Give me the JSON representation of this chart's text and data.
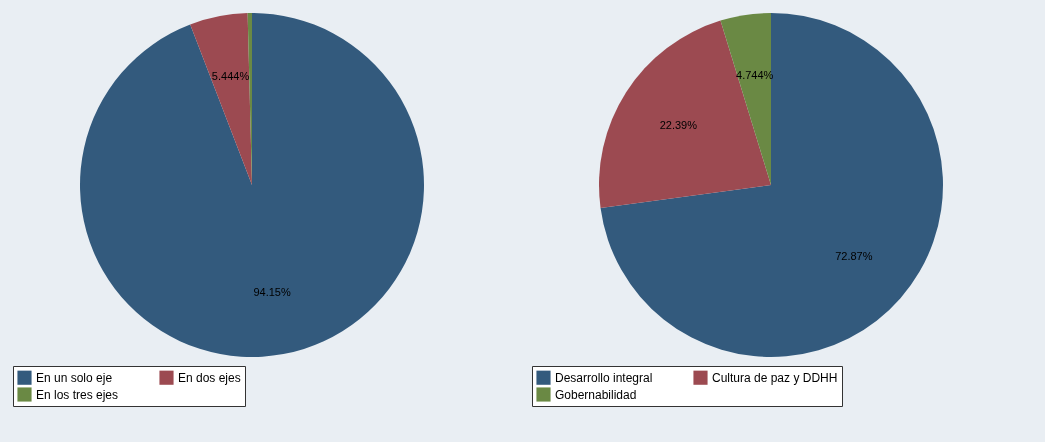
{
  "chart_data": [
    {
      "type": "pie",
      "categories": [
        "En un solo eje",
        "En dos ejes",
        "En los tres ejes"
      ],
      "values": [
        94.15,
        5.444,
        0.406
      ],
      "colors": [
        "#335a7d",
        "#9c4a51",
        "#6a8944"
      ],
      "value_labels": [
        "94.15%",
        "5.444%",
        null
      ],
      "legend": "bottom"
    },
    {
      "type": "pie",
      "categories": [
        "Desarrollo integral",
        "Cultura de paz y DDHH",
        "Gobernabilidad"
      ],
      "values": [
        72.87,
        22.39,
        4.744
      ],
      "colors": [
        "#335a7d",
        "#9c4a51",
        "#6a8944"
      ],
      "value_labels": [
        "72.87%",
        "22.39%",
        "4.744%"
      ],
      "legend": "bottom"
    }
  ]
}
